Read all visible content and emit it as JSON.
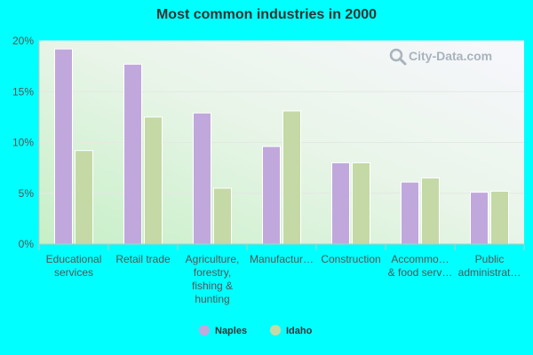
{
  "chart_data": {
    "type": "bar",
    "title": "Most common industries in 2000",
    "categories": [
      [
        "Educational",
        "services"
      ],
      [
        "Retail trade"
      ],
      [
        "Agriculture,",
        "forestry,",
        "fishing &",
        "hunting"
      ],
      [
        "Manufactur…"
      ],
      [
        "Construction"
      ],
      [
        "Accommo…",
        "& food serv…"
      ],
      [
        "Public",
        "administrat…"
      ]
    ],
    "series": [
      {
        "name": "Naples",
        "color": "#c0a8dc",
        "values": [
          19.2,
          17.7,
          12.9,
          9.6,
          8.0,
          6.1,
          5.1
        ]
      },
      {
        "name": "Idaho",
        "color": "#c4d9a6",
        "values": [
          9.2,
          12.5,
          5.5,
          13.1,
          8.0,
          6.5,
          5.2
        ]
      }
    ],
    "ylim": [
      0,
      20
    ],
    "yticks": [
      0,
      5,
      10,
      15,
      20
    ],
    "ytick_labels": [
      "0%",
      "5%",
      "10%",
      "15%",
      "20%"
    ],
    "grid": true,
    "legend_position": "bottom-center",
    "xlabel": "",
    "ylabel": ""
  },
  "watermark": {
    "text": "City-Data.com",
    "icon": "magnifier-icon"
  }
}
